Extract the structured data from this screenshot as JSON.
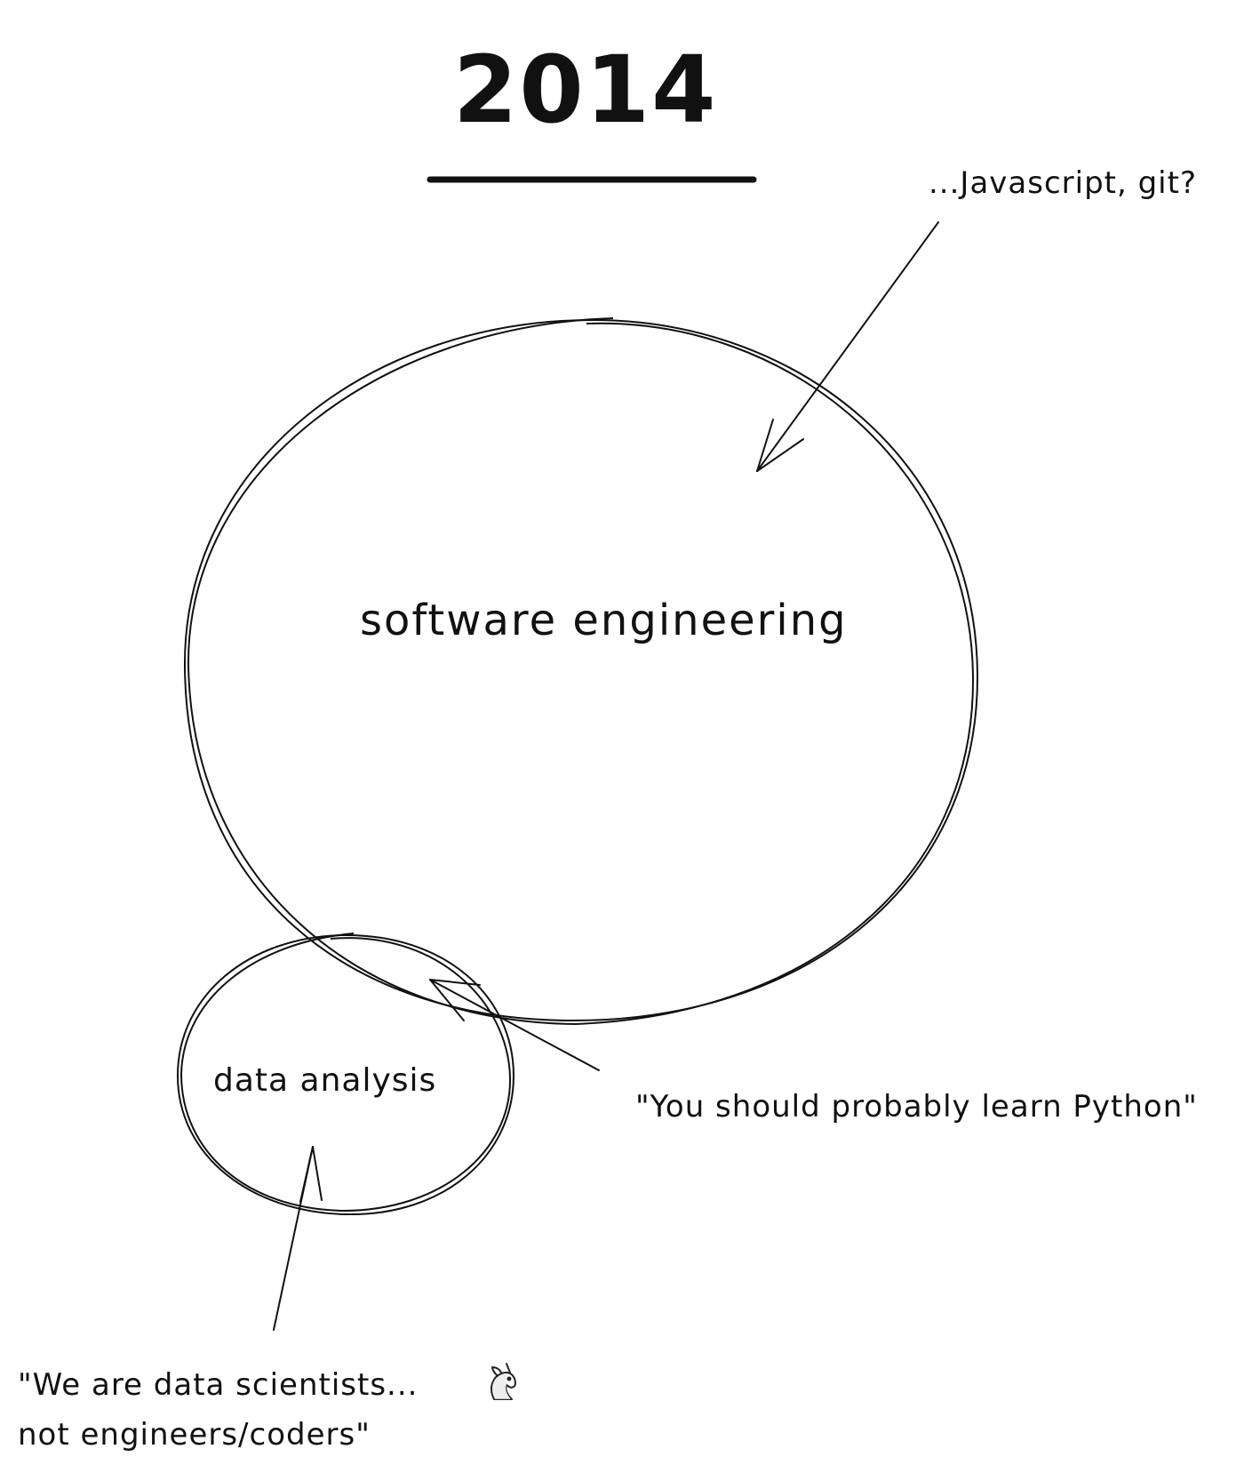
{
  "title": "2014",
  "diagram": {
    "circles": [
      {
        "id": "software-engineering",
        "label": "software engineering"
      },
      {
        "id": "data-analysis",
        "label": "data analysis"
      }
    ],
    "annotations": {
      "top_right": "...Javascript, git?",
      "right": "\"You should probably learn Python\"",
      "bottom_line1": "\"We are data scientists...",
      "bottom_line2": "not engineers/coders\""
    },
    "icons": {
      "bottom_note": "unicorn-icon"
    },
    "colors": {
      "ink": "#111111",
      "background": "#ffffff"
    }
  }
}
